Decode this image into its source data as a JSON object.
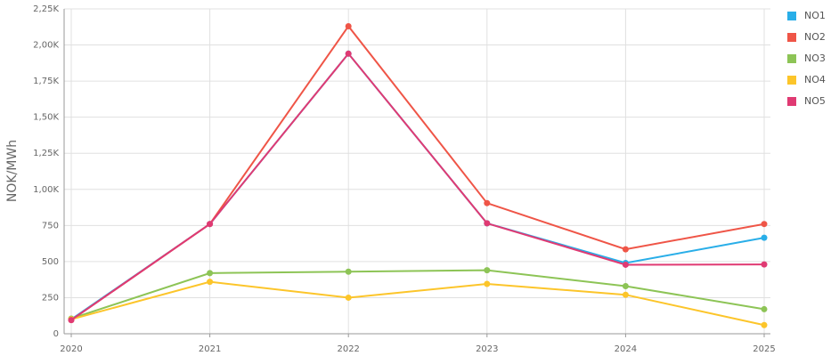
{
  "chart_data": {
    "type": "line",
    "y_label": "NOK/MWh",
    "categories": [
      "2020",
      "2021",
      "2022",
      "2023",
      "2024",
      "2025"
    ],
    "series": [
      {
        "name": "NO1",
        "color": "#29aee8",
        "values": [
          100,
          760,
          1940,
          765,
          490,
          665
        ]
      },
      {
        "name": "NO2",
        "color": "#ef5547",
        "values": [
          95,
          760,
          2130,
          905,
          585,
          760
        ]
      },
      {
        "name": "NO3",
        "color": "#8dc456",
        "values": [
          105,
          420,
          430,
          440,
          330,
          170
        ]
      },
      {
        "name": "NO4",
        "color": "#fcc52a",
        "values": [
          100,
          360,
          250,
          345,
          270,
          60
        ]
      },
      {
        "name": "NO5",
        "color": "#e03a73",
        "values": [
          95,
          760,
          1940,
          765,
          478,
          480
        ]
      }
    ],
    "ylim": [
      0,
      2250
    ],
    "yticks": [
      0,
      250,
      500,
      750,
      {
        "value": 1000,
        "label": "1,00K"
      },
      {
        "value": 1250,
        "label": "1,25K"
      },
      {
        "value": 1500,
        "label": "1,50K"
      },
      {
        "value": 1750,
        "label": "1,75K"
      },
      {
        "value": 2000,
        "label": "2,00K"
      },
      {
        "value": 2250,
        "label": "2,25K"
      }
    ],
    "grid": true,
    "legend": "right"
  }
}
